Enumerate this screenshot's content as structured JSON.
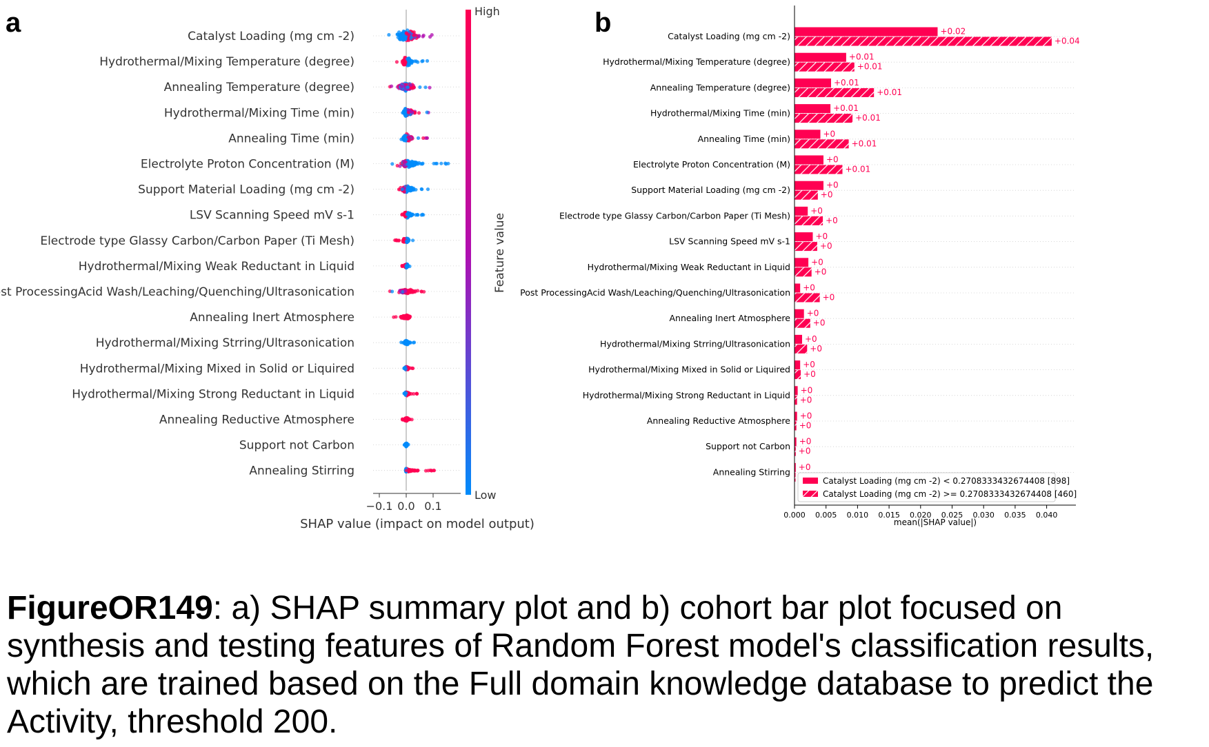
{
  "panel_a_letter": "a",
  "panel_b_letter": "b",
  "caption": {
    "figure_id": "FigureOR149",
    "text": ": a) SHAP summary plot and b) cohort bar plot focused on synthesis and testing features of Random Forest model's classification results, which are trained based on the Full domain knowledge database to predict the Activity, threshold 200."
  },
  "colors": {
    "high": "#ff0052",
    "low": "#008bfb",
    "mid": "#b00eb0",
    "zero_line": "#999999"
  },
  "chart_data": [
    {
      "type": "scatter",
      "subtype": "shap-beeswarm",
      "xlabel": "SHAP value (impact on model output)",
      "xticks": [
        -0.1,
        0.0,
        0.1
      ],
      "xlim": [
        -0.115,
        0.195
      ],
      "colorbar": {
        "label": "Feature value",
        "high": "High",
        "low": "Low"
      },
      "features": [
        {
          "name": "Catalyst Loading (mg cm -2)",
          "min": -0.11,
          "max": 0.15,
          "neg_color": "low",
          "pos_color": "mixed",
          "spread": 1.0
        },
        {
          "name": "Hydrothermal/Mixing Temperature (degree)",
          "min": -0.05,
          "max": 0.08,
          "neg_color": "high",
          "pos_color": "low",
          "spread": 0.8
        },
        {
          "name": "Annealing Temperature (degree)",
          "min": -0.11,
          "max": 0.09,
          "neg_color": "mixed",
          "pos_color": "mixed",
          "spread": 0.7
        },
        {
          "name": "Hydrothermal/Mixing Time (min)",
          "min": -0.03,
          "max": 0.09,
          "neg_color": "low",
          "pos_color": "mixed",
          "spread": 0.7
        },
        {
          "name": "Annealing Time (min)",
          "min": -0.04,
          "max": 0.08,
          "neg_color": "low",
          "pos_color": "mixed",
          "spread": 0.6
        },
        {
          "name": "Electrolyte Proton Concentration (M)",
          "min": -0.06,
          "max": 0.18,
          "neg_color": "mixed",
          "pos_color": "low",
          "spread": 0.7
        },
        {
          "name": "Support Material Loading (mg cm -2)",
          "min": -0.05,
          "max": 0.09,
          "neg_color": "mixed",
          "pos_color": "low",
          "spread": 0.6
        },
        {
          "name": "LSV Scanning Speed mV s-1",
          "min": -0.02,
          "max": 0.08,
          "neg_color": "high",
          "pos_color": "low",
          "spread": 0.5
        },
        {
          "name": "Electrode type Glassy Carbon/Carbon Paper (Ti Mesh)",
          "min": -0.05,
          "max": 0.04,
          "neg_color": "high",
          "pos_color": "low",
          "spread": 0.4
        },
        {
          "name": "Hydrothermal/Mixing Weak Reductant in Liquid",
          "min": -0.02,
          "max": 0.02,
          "neg_color": "high",
          "pos_color": "low",
          "spread": 0.35
        },
        {
          "name": "Post ProcessingAcid Wash/Leaching/Quenching/Ultrasonication",
          "min": -0.08,
          "max": 0.1,
          "neg_color": "mixed",
          "pos_color": "high",
          "spread": 0.4
        },
        {
          "name": "Annealing Inert Atmosphere",
          "min": -0.05,
          "max": 0.05,
          "neg_color": "high",
          "pos_color": "high",
          "spread": 0.4
        },
        {
          "name": "Hydrothermal/Mixing Strring/Ultrasonication",
          "min": -0.02,
          "max": 0.03,
          "neg_color": "low",
          "pos_color": "low",
          "spread": 0.35
        },
        {
          "name": "Hydrothermal/Mixing Mixed in Solid or Liquired",
          "min": -0.01,
          "max": 0.03,
          "neg_color": "low",
          "pos_color": "high",
          "spread": 0.3
        },
        {
          "name": "Hydrothermal/Mixing Strong Reductant in Liquid",
          "min": -0.01,
          "max": 0.05,
          "neg_color": "low",
          "pos_color": "high",
          "spread": 0.3
        },
        {
          "name": "Annealing Reductive Atmosphere",
          "min": -0.02,
          "max": 0.03,
          "neg_color": "high",
          "pos_color": "high",
          "spread": 0.3
        },
        {
          "name": "Support not Carbon",
          "min": -0.01,
          "max": 0.01,
          "neg_color": "low",
          "pos_color": "low",
          "spread": 0.3
        },
        {
          "name": "Annealing Stirring",
          "min": -0.005,
          "max": 0.11,
          "neg_color": "low",
          "pos_color": "high",
          "spread": 0.3
        }
      ]
    },
    {
      "type": "bar",
      "subtype": "cohort-bar-horizontal",
      "xlabel": "mean(|SHAP value|)",
      "xlim": [
        0,
        0.045
      ],
      "xticks": [
        0.0,
        0.005,
        0.01,
        0.015,
        0.02,
        0.025,
        0.03,
        0.035,
        0.04
      ],
      "legend_position": "lower-right",
      "categories": [
        "Catalyst Loading (mg cm -2)",
        "Hydrothermal/Mixing Temperature (degree)",
        "Annealing Temperature (degree)",
        "Hydrothermal/Mixing Time (min)",
        "Annealing Time (min)",
        "Electrolyte Proton Concentration (M)",
        "Support Material Loading (mg cm -2)",
        "Electrode type Glassy Carbon/Carbon Paper (Ti Mesh)",
        "LSV Scanning Speed mV s-1",
        "Hydrothermal/Mixing Weak Reductant in Liquid",
        "Post ProcessingAcid Wash/Leaching/Quenching/Ultrasonication",
        "Annealing Inert Atmosphere",
        "Hydrothermal/Mixing Strring/Ultrasonication",
        "Hydrothermal/Mixing Mixed in Solid or Liquired",
        "Hydrothermal/Mixing Strong Reductant in Liquid",
        "Annealing Reductive Atmosphere",
        "Support not Carbon",
        "Annealing Stirring"
      ],
      "series": [
        {
          "name": "Catalyst Loading (mg cm -2) < 0.2708333432674408 [898]",
          "hatch": false,
          "values": [
            0.0227,
            0.0082,
            0.0058,
            0.0057,
            0.0041,
            0.0046,
            0.0046,
            0.0021,
            0.0029,
            0.0022,
            0.0009,
            0.0015,
            0.0012,
            0.0009,
            0.0005,
            0.0004,
            0.0003,
            0.0002
          ],
          "labels": [
            "+0.02",
            "+0.01",
            "+0.01",
            "+0.01",
            "+0",
            "+0",
            "+0",
            "+0",
            "+0",
            "+0",
            "+0",
            "+0",
            "+0",
            "+0",
            "+0",
            "+0",
            "+0",
            "+0"
          ]
        },
        {
          "name": "Catalyst Loading (mg cm -2) >= 0.2708333432674408 [460]",
          "hatch": true,
          "values": [
            0.0408,
            0.0095,
            0.0126,
            0.0092,
            0.0086,
            0.0076,
            0.0037,
            0.0045,
            0.0036,
            0.0027,
            0.004,
            0.0025,
            0.002,
            0.001,
            0.0004,
            0.0003,
            0.0002,
            0.0001
          ],
          "labels": [
            "+0.04",
            "+0.01",
            "+0.01",
            "+0.01",
            "+0.01",
            "+0.01",
            "+0",
            "+0",
            "+0",
            "+0",
            "+0",
            "+0",
            "+0",
            "+0",
            "+0",
            "+0",
            "+0",
            ""
          ]
        }
      ]
    }
  ]
}
